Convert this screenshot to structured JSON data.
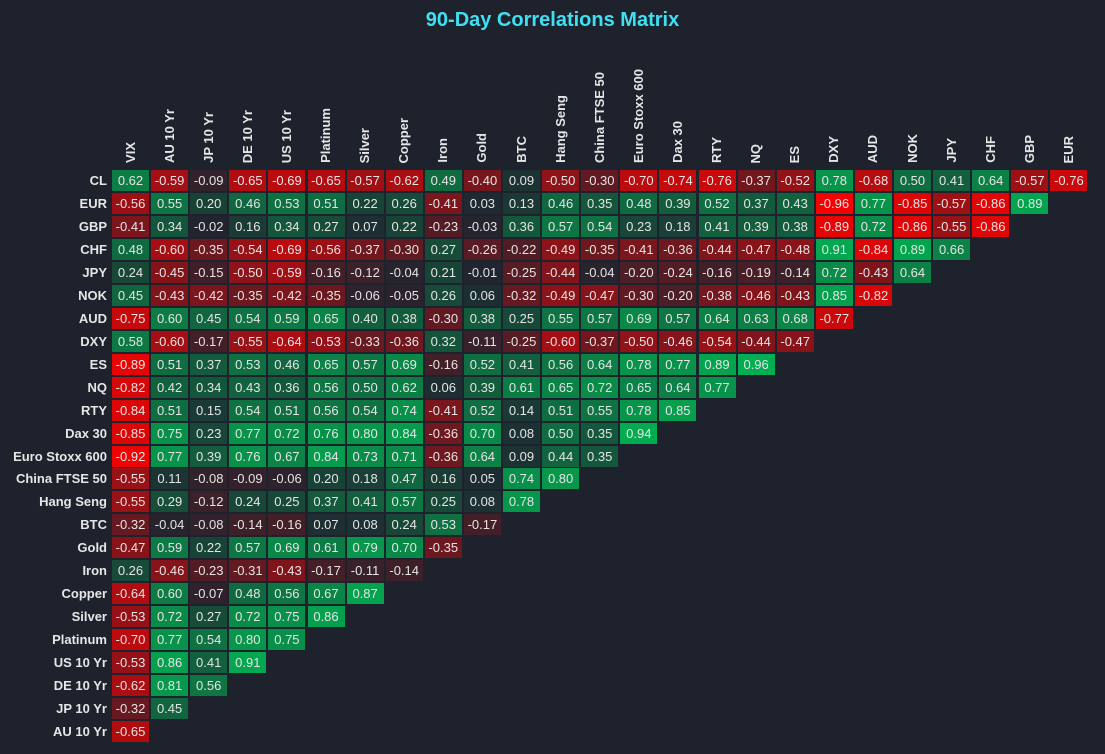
{
  "chart_data": {
    "type": "heatmap",
    "title": "90-Day Correlations Matrix",
    "columns": [
      "VIX",
      "AU 10 Yr",
      "JP 10 Yr",
      "DE 10 Yr",
      "US 10 Yr",
      "Platinum",
      "Silver",
      "Copper",
      "Iron",
      "Gold",
      "BTC",
      "Hang Seng",
      "China FTSE 50",
      "Euro Stoxx 600",
      "Dax 30",
      "RTY",
      "NQ",
      "ES",
      "DXY",
      "AUD",
      "NOK",
      "JPY",
      "CHF",
      "GBP",
      "EUR"
    ],
    "rows": [
      "CL",
      "EUR",
      "GBP",
      "CHF",
      "JPY",
      "NOK",
      "AUD",
      "DXY",
      "ES",
      "NQ",
      "RTY",
      "Dax 30",
      "Euro Stoxx 600",
      "China FTSE 50",
      "Hang Seng",
      "BTC",
      "Gold",
      "Iron",
      "Copper",
      "Silver",
      "Platinum",
      "US 10 Yr",
      "DE 10 Yr",
      "JP 10 Yr",
      "AU 10 Yr"
    ],
    "values": [
      [
        0.62,
        -0.59,
        -0.09,
        -0.65,
        -0.69,
        -0.65,
        -0.57,
        -0.62,
        0.49,
        -0.4,
        0.09,
        -0.5,
        -0.3,
        -0.7,
        -0.74,
        -0.76,
        -0.37,
        -0.52,
        0.78,
        -0.68,
        0.5,
        0.41,
        0.64,
        -0.57,
        -0.76
      ],
      [
        -0.56,
        0.55,
        0.2,
        0.46,
        0.53,
        0.51,
        0.22,
        0.26,
        -0.41,
        0.03,
        0.13,
        0.46,
        0.35,
        0.48,
        0.39,
        0.52,
        0.37,
        0.43,
        -0.96,
        0.77,
        -0.85,
        -0.57,
        -0.86,
        0.89
      ],
      [
        -0.41,
        0.34,
        -0.02,
        0.16,
        0.34,
        0.27,
        0.07,
        0.22,
        -0.23,
        -0.03,
        0.36,
        0.57,
        0.54,
        0.23,
        0.18,
        0.41,
        0.39,
        0.38,
        -0.89,
        0.72,
        -0.86,
        -0.55,
        -0.86
      ],
      [
        0.48,
        -0.6,
        -0.35,
        -0.54,
        -0.69,
        -0.56,
        -0.37,
        -0.3,
        0.27,
        -0.26,
        -0.22,
        -0.49,
        -0.35,
        -0.41,
        -0.36,
        -0.44,
        -0.47,
        -0.48,
        0.91,
        -0.84,
        0.89,
        0.66
      ],
      [
        0.24,
        -0.45,
        -0.15,
        -0.5,
        -0.59,
        -0.16,
        -0.12,
        -0.04,
        0.21,
        -0.01,
        -0.25,
        -0.44,
        -0.04,
        -0.2,
        -0.24,
        -0.16,
        -0.19,
        -0.14,
        0.72,
        -0.43,
        0.64
      ],
      [
        0.45,
        -0.43,
        -0.42,
        -0.35,
        -0.42,
        -0.35,
        -0.06,
        -0.05,
        0.26,
        0.06,
        -0.32,
        -0.49,
        -0.47,
        -0.3,
        -0.2,
        -0.38,
        -0.46,
        -0.43,
        0.85,
        -0.82
      ],
      [
        -0.75,
        0.6,
        0.45,
        0.54,
        0.59,
        0.65,
        0.4,
        0.38,
        -0.3,
        0.38,
        0.25,
        0.55,
        0.57,
        0.69,
        0.57,
        0.64,
        0.63,
        0.68,
        -0.77
      ],
      [
        0.58,
        -0.6,
        -0.17,
        -0.55,
        -0.64,
        -0.53,
        -0.33,
        -0.36,
        0.32,
        -0.11,
        -0.25,
        -0.6,
        -0.37,
        -0.5,
        -0.46,
        -0.54,
        -0.44,
        -0.47
      ],
      [
        -0.89,
        0.51,
        0.37,
        0.53,
        0.46,
        0.65,
        0.57,
        0.69,
        -0.16,
        0.52,
        0.41,
        0.56,
        0.64,
        0.78,
        0.77,
        0.89,
        0.96
      ],
      [
        -0.82,
        0.42,
        0.34,
        0.43,
        0.36,
        0.56,
        0.5,
        0.62,
        0.06,
        0.39,
        0.61,
        0.65,
        0.72,
        0.65,
        0.64,
        0.77
      ],
      [
        -0.84,
        0.51,
        0.15,
        0.54,
        0.51,
        0.56,
        0.54,
        0.74,
        -0.41,
        0.52,
        0.14,
        0.51,
        0.55,
        0.78,
        0.85
      ],
      [
        -0.85,
        0.75,
        0.23,
        0.77,
        0.72,
        0.76,
        0.8,
        0.84,
        -0.36,
        0.7,
        0.08,
        0.5,
        0.35,
        0.94
      ],
      [
        -0.92,
        0.77,
        0.39,
        0.76,
        0.67,
        0.84,
        0.73,
        0.71,
        -0.36,
        0.64,
        0.09,
        0.44,
        0.35
      ],
      [
        -0.55,
        0.11,
        -0.08,
        -0.09,
        -0.06,
        0.2,
        0.18,
        0.47,
        0.16,
        0.05,
        0.74,
        0.8
      ],
      [
        -0.55,
        0.29,
        -0.12,
        0.24,
        0.25,
        0.37,
        0.41,
        0.57,
        0.25,
        0.08,
        0.78
      ],
      [
        -0.32,
        -0.04,
        -0.08,
        -0.14,
        -0.16,
        0.07,
        0.08,
        0.24,
        0.53,
        -0.17
      ],
      [
        -0.47,
        0.59,
        0.22,
        0.57,
        0.69,
        0.61,
        0.79,
        0.7,
        -0.35
      ],
      [
        0.26,
        -0.46,
        -0.23,
        -0.31,
        -0.43,
        -0.17,
        -0.11,
        -0.14
      ],
      [
        -0.64,
        0.6,
        -0.07,
        0.48,
        0.56,
        0.67,
        0.87
      ],
      [
        -0.53,
        0.72,
        0.27,
        0.72,
        0.75,
        0.86
      ],
      [
        -0.7,
        0.77,
        0.54,
        0.8,
        0.75
      ],
      [
        -0.53,
        0.86,
        0.41,
        0.91
      ],
      [
        -0.62,
        0.81,
        0.56
      ],
      [
        -0.32,
        0.45
      ],
      [
        -0.65
      ]
    ],
    "range": [
      -1,
      1
    ],
    "colors": {
      "negative": "#ff0000",
      "neutral": "#1f2530",
      "positive": "#00b452",
      "title": "#3fe0f2",
      "background": "#1e222d"
    }
  }
}
